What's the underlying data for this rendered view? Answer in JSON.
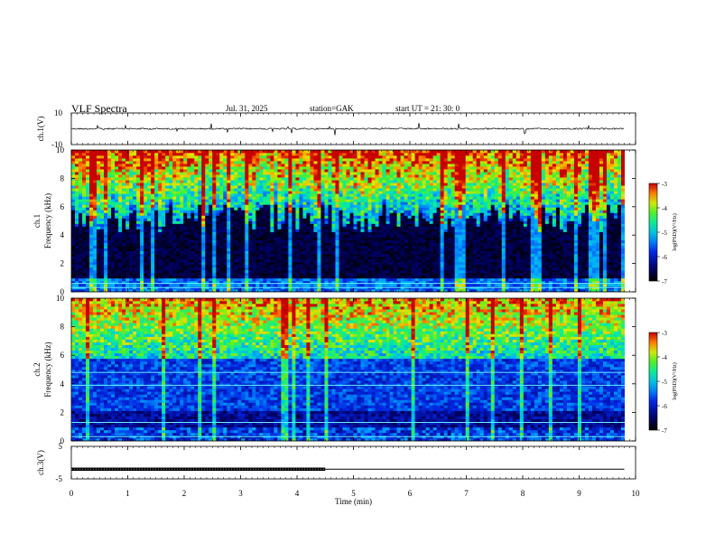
{
  "header": {
    "title": "VLF  Spectra",
    "date": "Jul.  31,  2025",
    "station": "station=GAK",
    "start_ut": "start  UT  =   21: 30: 0"
  },
  "chart_data": [
    {
      "type": "line",
      "panel": "ch1-waveform",
      "ylabel": "ch.1(V)",
      "ylim": [
        -10,
        10
      ],
      "yticks": [
        "10",
        "-10"
      ],
      "baseline": 0,
      "xlim": [
        0,
        10
      ]
    },
    {
      "type": "heatmap",
      "panel": "ch1-spectrogram",
      "ylabel": [
        "ch.1",
        "Frequency  (kHz)"
      ],
      "ylim": [
        0,
        10
      ],
      "yticks": [
        "0",
        "2",
        "4",
        "6",
        "8",
        "10"
      ],
      "xlim": [
        0,
        9.8
      ],
      "colorbar": {
        "label": "log(PSD)(V²/Hz)",
        "range": [
          -7,
          -3
        ],
        "ticks": [
          "-3",
          "-4",
          "-5",
          "-6",
          "-7"
        ]
      }
    },
    {
      "type": "heatmap",
      "panel": "ch2-spectrogram",
      "ylabel": [
        "ch.2",
        "Frequency  (kHz)"
      ],
      "ylim": [
        0,
        10
      ],
      "yticks": [
        "0",
        "2",
        "4",
        "6",
        "8",
        "10"
      ],
      "xlim": [
        0,
        9.8
      ],
      "colorbar": {
        "label": "log(PSD)(V²/Hz)",
        "range": [
          -7,
          -3
        ],
        "ticks": [
          "-3",
          "-4",
          "-5",
          "-6",
          "-7"
        ]
      }
    },
    {
      "type": "line",
      "panel": "ch3-waveform",
      "ylabel": "ch.3(V)",
      "ylim": [
        -5,
        5
      ],
      "yticks": [
        "5",
        "-5"
      ],
      "segments": [
        {
          "x": [
            0,
            4.5
          ],
          "y": -2,
          "style": "dotted-thick"
        },
        {
          "x": [
            4.5,
            9.8
          ],
          "y": -2,
          "style": "solid"
        }
      ],
      "xlim": [
        0,
        10
      ],
      "xlabel": "Time  (min)",
      "xticks": [
        "0",
        "1",
        "2",
        "3",
        "4",
        "5",
        "6",
        "7",
        "8",
        "9",
        "10"
      ]
    }
  ],
  "colors": {
    "background": "#ffffff",
    "axis": "#000000",
    "spectro_low": "#000000",
    "spectro_mid": "#1a9cff",
    "spectro_high": "#dd0000"
  }
}
